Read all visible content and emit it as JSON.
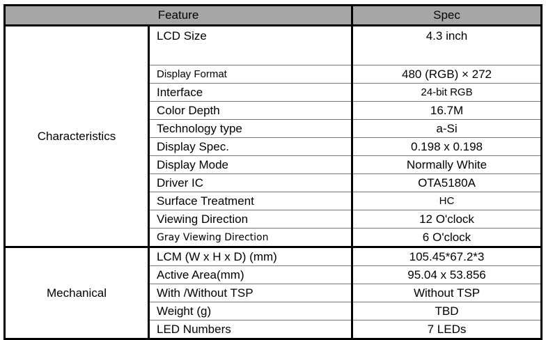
{
  "header": {
    "feature": "Feature",
    "spec": "Spec"
  },
  "groups": [
    {
      "name": "Characteristics",
      "rows": [
        {
          "feature": "LCD Size",
          "spec": "4.3 inch"
        },
        {
          "feature": "Display Format",
          "spec": "480 (RGB) × 272"
        },
        {
          "feature": "Interface",
          "spec": "24-bit RGB"
        },
        {
          "feature": "Color Depth",
          "spec": "16.7M"
        },
        {
          "feature": "Technology type",
          "spec": "a-Si"
        },
        {
          "feature": "Display Spec.",
          "spec": "0.198 x 0.198"
        },
        {
          "feature": "Display Mode",
          "spec": "Normally White"
        },
        {
          "feature": "Driver IC",
          "spec": "OTA5180A"
        },
        {
          "feature": "Surface Treatment",
          "spec": "HC"
        },
        {
          "feature": "Viewing Direction",
          "spec": "12 O'clock"
        },
        {
          "feature": "Gray Viewing Direction",
          "spec": "6 O'clock"
        }
      ]
    },
    {
      "name": "Mechanical",
      "rows": [
        {
          "feature": "LCM (W x H x D) (mm)",
          "spec": "105.45*67.2*3"
        },
        {
          "feature": "Active Area(mm)",
          "spec": "95.04 x 53.856"
        },
        {
          "feature": "With /Without TSP",
          "spec": "Without TSP"
        },
        {
          "feature": "Weight (g)",
          "spec": "TBD"
        },
        {
          "feature": "LED Numbers",
          "spec": "7 LEDs"
        }
      ]
    }
  ]
}
